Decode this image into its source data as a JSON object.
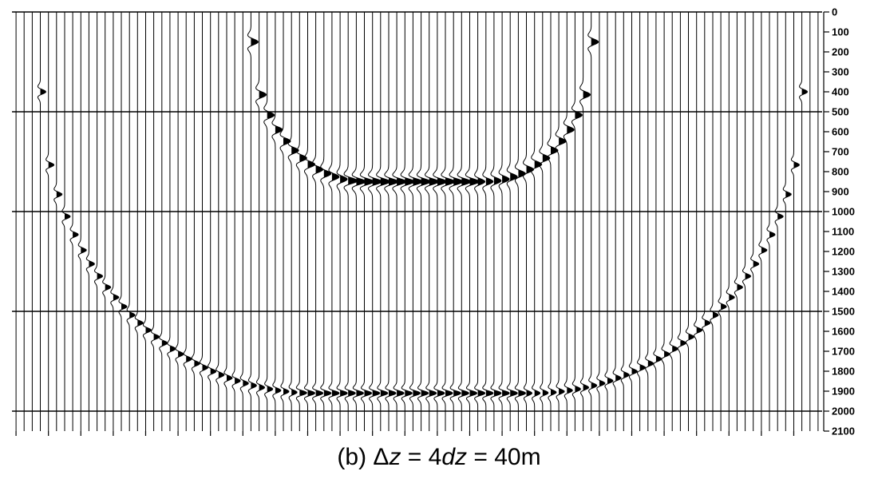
{
  "chart_data": {
    "type": "seismic wiggle-trace section",
    "caption": {
      "prefix": "(b) ",
      "delta": "Δ",
      "z1": "z",
      "eq1": " = 4",
      "dz": "dz",
      "eq2": " = 40m"
    },
    "y_axis": {
      "side": "right",
      "inverted": true,
      "range": [
        0,
        2100
      ],
      "step": 100,
      "tick_labels": [
        "0",
        "100",
        "200",
        "300",
        "400",
        "500",
        "600",
        "700",
        "800",
        "900",
        "1000",
        "1100",
        "1200",
        "1300",
        "1400",
        "1500",
        "1600",
        "1700",
        "1800",
        "1900",
        "2000",
        "2100"
      ],
      "major_gridlines": [
        0,
        500,
        1000,
        1500,
        2000
      ]
    },
    "trace_count": 100,
    "events": [
      {
        "name": "shallow",
        "shape": "bowl",
        "apex_depth": 850,
        "edge_depth": 150,
        "trace_range": [
          29,
          71
        ],
        "flat_trace_range": [
          41,
          56
        ],
        "amplitude": "high"
      },
      {
        "name": "deep",
        "shape": "bowl",
        "apex_depth": 1910,
        "edge_depth": 400,
        "trace_range": [
          3,
          97
        ],
        "flat_trace_range": [
          35,
          62
        ],
        "amplitude": "moderate"
      }
    ],
    "colors": {
      "trace": "#000000",
      "background": "#ffffff"
    }
  }
}
